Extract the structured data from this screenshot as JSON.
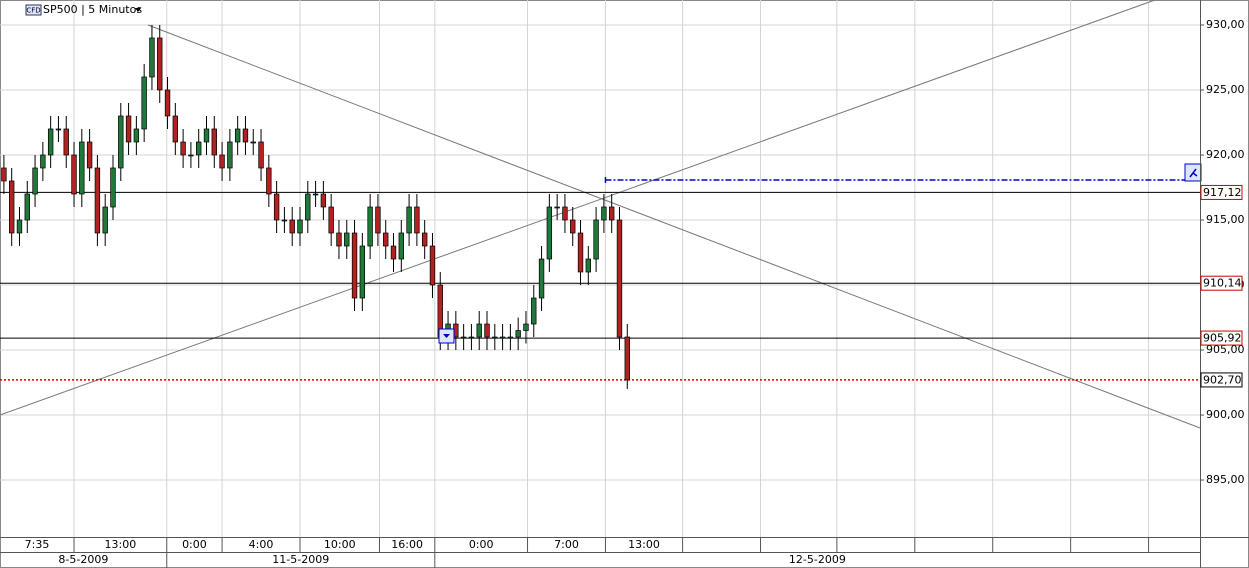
{
  "chart_data": {
    "type": "candlestick",
    "badge": "CFD",
    "title": "SP500 | 5 Minutos",
    "xlim": [
      0,
      154
    ],
    "ylim": [
      890.62,
      931.92
    ],
    "yticks": [
      {
        "value": 895,
        "label": "895,00"
      },
      {
        "value": 900,
        "label": "900,00"
      },
      {
        "value": 905,
        "label": "905,00"
      },
      {
        "value": 910,
        "label": "910,00"
      },
      {
        "value": 915,
        "label": "915,00"
      },
      {
        "value": 920,
        "label": "920,00"
      },
      {
        "value": 925,
        "label": "925,00"
      },
      {
        "value": 930,
        "label": "930,00"
      }
    ],
    "xticks": [
      {
        "value": 0,
        "label": "7:35"
      },
      {
        "value": 9.5,
        "label": "13:00"
      },
      {
        "value": 21.4,
        "label": "0:00"
      },
      {
        "value": 28.5,
        "label": "4:00"
      },
      {
        "value": 38.5,
        "label": "10:00"
      },
      {
        "value": 48.7,
        "label": "16:00"
      },
      {
        "value": 55.8,
        "label": "0:00"
      },
      {
        "value": 67.7,
        "label": "7:00"
      },
      {
        "value": 77.7,
        "label": "13:00"
      }
    ],
    "xgrid": [
      87.6,
      97.6,
      107.4,
      117.4,
      127.4,
      137.4,
      147.4
    ],
    "dates": [
      {
        "value": 0,
        "label": "8-5-2009"
      },
      {
        "value": 21.4,
        "label": "11-5-2009"
      },
      {
        "value": 55.8,
        "label": "12-5-2009"
      }
    ],
    "up_color": "#1f7a3a",
    "down_color": "#b22222",
    "grid": true,
    "open": [
      919,
      918,
      914,
      915,
      917,
      919,
      920,
      922,
      922,
      920,
      917,
      921,
      919,
      914,
      916,
      919,
      923,
      921,
      922,
      926,
      929,
      925,
      923,
      921,
      920,
      920,
      921,
      922,
      920,
      919,
      921,
      922,
      921,
      921,
      919,
      917,
      915,
      915,
      914,
      915,
      917,
      917,
      916,
      914,
      913,
      914,
      909,
      913,
      916,
      914,
      913,
      912,
      914,
      916,
      914,
      913,
      910,
      906,
      907,
      906,
      906,
      906,
      907,
      906,
      906,
      906,
      906,
      906.5,
      907,
      909,
      912,
      916,
      916,
      915,
      914,
      911,
      912,
      915,
      916,
      915,
      906
    ],
    "high": [
      920,
      919,
      916,
      918,
      920,
      921,
      923,
      923,
      923,
      921,
      922,
      922,
      920,
      917,
      920,
      924,
      924,
      923,
      927,
      930,
      930,
      926,
      924,
      922,
      921,
      922,
      923,
      923,
      921,
      922,
      923,
      923,
      922,
      922,
      920,
      918,
      916,
      916,
      916,
      918,
      918,
      918,
      917,
      915,
      915,
      915,
      914,
      917,
      917,
      915,
      914,
      915,
      917,
      917,
      915,
      914,
      911,
      908,
      908,
      907,
      907,
      908,
      908,
      907,
      907,
      907,
      907.5,
      908,
      910,
      913,
      917,
      917,
      917,
      916,
      915,
      913,
      916,
      917,
      917,
      916,
      907
    ],
    "low": [
      917,
      913,
      913,
      914,
      916,
      918,
      919,
      921,
      919,
      916,
      916,
      918,
      913,
      913,
      915,
      918,
      920,
      920,
      921,
      925,
      924,
      922,
      920,
      919,
      919,
      919,
      920,
      919,
      918,
      918,
      920,
      920,
      920,
      918,
      916,
      914,
      914,
      913,
      913,
      914,
      916,
      915,
      913,
      912,
      912,
      908,
      908,
      912,
      913,
      912,
      911,
      911,
      913,
      913,
      912,
      909,
      905,
      905,
      905,
      905,
      905,
      905,
      905,
      905,
      905,
      905,
      905,
      905.5,
      906,
      908,
      911,
      915,
      914,
      913,
      910,
      910,
      911,
      914,
      914,
      905,
      902
    ],
    "close": [
      918,
      914,
      915,
      917,
      919,
      920,
      922,
      922,
      920,
      917,
      921,
      919,
      914,
      916,
      919,
      923,
      921,
      922,
      926,
      929,
      925,
      923,
      921,
      920,
      920,
      921,
      922,
      920,
      919,
      921,
      922,
      921,
      921,
      919,
      917,
      915,
      915,
      914,
      915,
      917,
      917,
      916,
      914,
      913,
      914,
      909,
      913,
      916,
      914,
      913,
      912,
      914,
      916,
      914,
      913,
      910,
      906,
      907,
      906,
      906,
      906,
      907,
      906,
      906,
      906,
      906,
      906.5,
      907,
      909,
      912,
      916,
      916,
      915,
      914,
      911,
      912,
      915,
      916,
      915,
      906,
      902.7
    ],
    "levels": [
      {
        "value": 917.12,
        "label": "917,12",
        "color": "#000000",
        "box_color": "#cc0000",
        "line_style": "solid"
      },
      {
        "value": 910.14,
        "label": "910,14",
        "color": "#000000",
        "box_color": "#cc0000",
        "line_style": "solid"
      },
      {
        "value": 905.92,
        "label": "905,92",
        "color": "#000000",
        "box_color": "#cc0000",
        "line_style": "solid"
      },
      {
        "value": 902.7,
        "label": "902,70",
        "color": "#cc0000",
        "box_color": "#000000",
        "line_style": "dotted"
      }
    ],
    "alert": {
      "value": 918.08,
      "start": 77.7,
      "color": "#0000cc"
    }
  }
}
